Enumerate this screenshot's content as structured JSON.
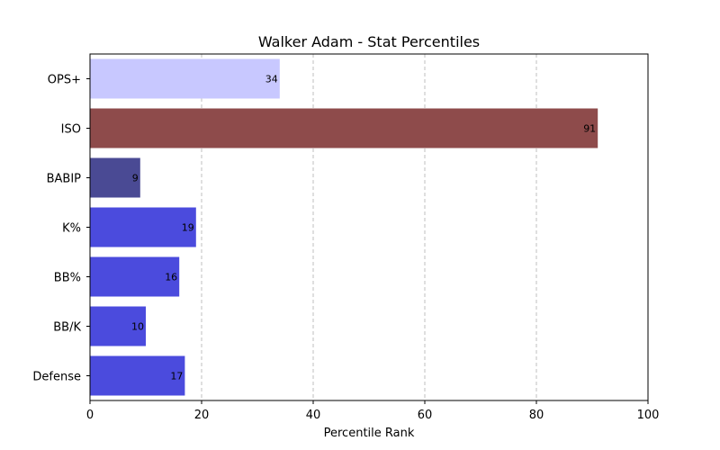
{
  "chart_data": {
    "type": "bar",
    "orientation": "horizontal",
    "title": "Walker Adam - Stat Percentiles",
    "xlabel": "Percentile Rank",
    "ylabel": "",
    "xlim": [
      0,
      100
    ],
    "xticks": [
      0,
      20,
      40,
      60,
      80,
      100
    ],
    "grid": "x-dashed",
    "bars": [
      {
        "category": "OPS+",
        "value": 34,
        "color": "#c8c8ff"
      },
      {
        "category": "ISO",
        "value": 91,
        "color": "#8e4b4b"
      },
      {
        "category": "BABIP",
        "value": 9,
        "color": "#4a4a94"
      },
      {
        "category": "K%",
        "value": 19,
        "color": "#4b4bdd"
      },
      {
        "category": "BB%",
        "value": 16,
        "color": "#4b4bdd"
      },
      {
        "category": "BB/K",
        "value": 10,
        "color": "#4b4bdd"
      },
      {
        "category": "Defense",
        "value": 17,
        "color": "#4b4bdd"
      }
    ]
  }
}
